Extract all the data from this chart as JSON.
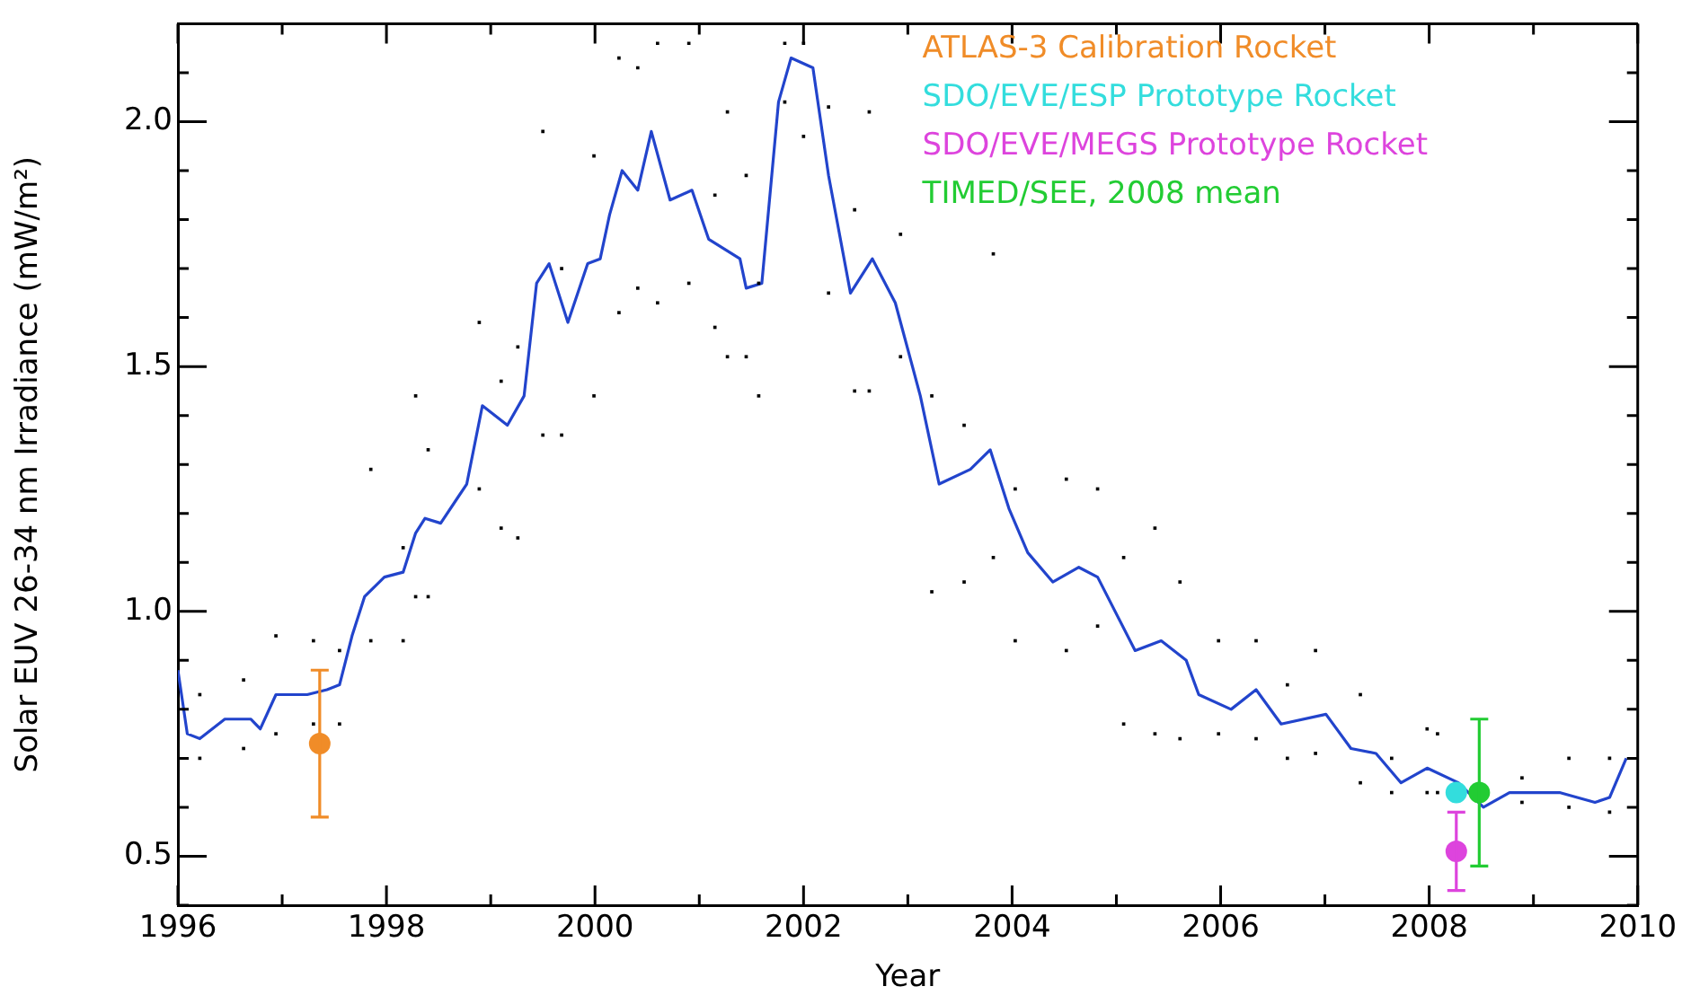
{
  "chart_data": {
    "type": "scatter",
    "xlabel": "Year",
    "ylabel": "Solar EUV 26-34 nm Irradiance (mW/m²)",
    "xlim": [
      1996,
      2010
    ],
    "xticks": [
      1996,
      {
        "value": 1997,
        "label": null
      },
      1998,
      {
        "value": 1999,
        "label": null
      },
      2000,
      {
        "value": 2001,
        "label": null
      },
      2002,
      {
        "value": 2003,
        "label": null
      },
      2004,
      {
        "value": 2005,
        "label": null
      },
      2006,
      {
        "value": 2007,
        "label": null
      },
      2008,
      {
        "value": 2009,
        "label": null
      },
      2010
    ],
    "ylim": [
      0.4,
      2.2
    ],
    "yticks": [
      {
        "value": 0.4,
        "label": null
      },
      "0.5",
      {
        "value": 0.6,
        "label": null
      },
      {
        "value": 0.7,
        "label": null
      },
      {
        "value": 0.8,
        "label": null
      },
      {
        "value": 0.9,
        "label": null
      },
      {
        "value": 1.0,
        "label": "1.0"
      },
      {
        "value": 1.1,
        "label": null
      },
      {
        "value": 1.2,
        "label": null
      },
      {
        "value": 1.3,
        "label": null
      },
      {
        "value": 1.4,
        "label": null
      },
      1.5,
      {
        "value": 1.6,
        "label": null
      },
      {
        "value": 1.7,
        "label": null
      },
      {
        "value": 1.8,
        "label": null
      },
      {
        "value": 1.9,
        "label": null
      },
      {
        "value": 2.0,
        "label": "2.0"
      },
      {
        "value": 2.1,
        "label": null
      },
      {
        "value": 2.2,
        "label": null
      }
    ],
    "grid": false,
    "legend": "top",
    "series": [
      {
        "color": "#000000",
        "marker": "square",
        "x": [
          1996.21,
          1996.21,
          1996.63,
          1996.63,
          1996.94,
          1996.94,
          1997.3,
          1997.3,
          1997.55,
          1997.55,
          1997.85,
          1997.85,
          1998.16,
          1998.16,
          1998.28,
          1998.28,
          1998.4,
          1998.4,
          1998.89,
          1998.89,
          1999.1,
          1999.1,
          1999.26,
          1999.26,
          1999.5,
          1999.5,
          1999.68,
          1999.68,
          1999.99,
          1999.99,
          2000.23,
          2000.23,
          2000.41,
          2000.41,
          2000.6,
          2000.6,
          2000.9,
          2000.9,
          2001.15,
          2001.15,
          2001.27,
          2001.27,
          2001.45,
          2001.45,
          2001.57,
          2001.57,
          2001.82,
          2001.82,
          2002.0,
          2002.0,
          2002.24,
          2002.24,
          2002.49,
          2002.49,
          2002.63,
          2002.63,
          2002.93,
          2002.93,
          2003.23,
          2003.23,
          2003.54,
          2003.54,
          2003.82,
          2003.82,
          2004.03,
          2004.03,
          2004.52,
          2004.52,
          2004.82,
          2004.82,
          2005.07,
          2005.07,
          2005.37,
          2005.37,
          2005.61,
          2005.61,
          2005.98,
          2005.98,
          2006.34,
          2006.34,
          2006.64,
          2006.64,
          2006.91,
          2006.91,
          2007.34,
          2007.34,
          2007.64,
          2007.64,
          2007.98,
          2007.98,
          2008.08,
          2008.08,
          2008.89,
          2008.89,
          2009.34,
          2009.34,
          2009.73,
          2009.73
        ],
        "values": [
          0.83,
          0.7,
          0.86,
          0.72,
          0.95,
          0.75,
          0.94,
          0.77,
          0.92,
          0.77,
          1.29,
          0.94,
          1.13,
          0.94,
          1.44,
          1.03,
          1.33,
          1.03,
          1.59,
          1.25,
          1.47,
          1.17,
          1.54,
          1.15,
          1.98,
          1.36,
          1.7,
          1.36,
          1.93,
          1.44,
          2.13,
          1.61,
          2.11,
          1.66,
          2.16,
          1.63,
          2.16,
          1.67,
          1.85,
          1.58,
          2.02,
          1.52,
          1.89,
          1.52,
          1.67,
          1.44,
          2.16,
          2.04,
          2.16,
          1.97,
          2.03,
          1.65,
          1.82,
          1.45,
          2.02,
          1.45,
          1.77,
          1.52,
          1.44,
          1.04,
          1.38,
          1.06,
          1.73,
          1.11,
          1.25,
          0.94,
          1.27,
          0.92,
          1.25,
          0.97,
          1.11,
          0.77,
          1.17,
          0.75,
          1.06,
          0.74,
          0.94,
          0.75,
          0.94,
          0.74,
          0.85,
          0.7,
          0.92,
          0.71,
          0.83,
          0.65,
          0.7,
          0.63,
          0.76,
          0.63,
          0.75,
          0.63,
          0.66,
          0.61,
          0.7,
          0.6,
          0.7,
          0.59
        ]
      },
      {
        "type": "line",
        "color": "#2244cc",
        "marker": "none",
        "x": [
          1996.0,
          1996.09,
          1996.21,
          1996.45,
          1996.7,
          1996.79,
          1996.94,
          1997.24,
          1997.43,
          1997.55,
          1997.67,
          1997.79,
          1997.98,
          1998.16,
          1998.28,
          1998.37,
          1998.52,
          1998.77,
          1998.92,
          1999.16,
          1999.32,
          1999.44,
          1999.56,
          1999.74,
          1999.93,
          2000.05,
          2000.14,
          2000.26,
          2000.41,
          2000.54,
          2000.72,
          2000.93,
          2001.09,
          2001.39,
          2001.45,
          2001.6,
          2001.76,
          2001.88,
          2002.09,
          2002.24,
          2002.45,
          2002.66,
          2002.88,
          2003.12,
          2003.3,
          2003.6,
          2003.79,
          2003.97,
          2004.15,
          2004.39,
          2004.64,
          2004.82,
          2005.18,
          2005.43,
          2005.67,
          2005.79,
          2006.1,
          2006.34,
          2006.58,
          2007.01,
          2007.25,
          2007.49,
          2007.73,
          2007.98,
          2008.28,
          2008.52,
          2008.77,
          2009.25,
          2009.59,
          2009.73,
          2009.89
        ],
        "values": [
          0.88,
          0.75,
          0.74,
          0.78,
          0.78,
          0.76,
          0.83,
          0.83,
          0.84,
          0.85,
          0.95,
          1.03,
          1.07,
          1.08,
          1.16,
          1.19,
          1.18,
          1.26,
          1.42,
          1.38,
          1.44,
          1.67,
          1.71,
          1.59,
          1.71,
          1.72,
          1.81,
          1.9,
          1.86,
          1.98,
          1.84,
          1.86,
          1.76,
          1.72,
          1.66,
          1.67,
          2.04,
          2.13,
          2.11,
          1.89,
          1.65,
          1.72,
          1.63,
          1.44,
          1.26,
          1.29,
          1.33,
          1.21,
          1.12,
          1.06,
          1.09,
          1.07,
          0.92,
          0.94,
          0.9,
          0.83,
          0.8,
          0.84,
          0.77,
          0.79,
          0.72,
          0.71,
          0.65,
          0.68,
          0.65,
          0.6,
          0.63,
          0.63,
          0.61,
          0.62,
          0.7
        ]
      },
      {
        "type": "scatter",
        "name": "ATLAS-3 Calibration Rocket",
        "color": "#f08c28",
        "marker": "circle",
        "x": [
          1997.36
        ],
        "values": [
          0.73
        ],
        "errors": [
          0.15
        ]
      },
      {
        "type": "scatter",
        "name": "SDO/EVE/ESP Prototype Rocket",
        "color": "#33dddd",
        "marker": "circle",
        "x": [
          2008.26
        ],
        "values": [
          0.63
        ]
      },
      {
        "type": "scatter",
        "name": "SDO/EVE/MEGS Prototype Rocket",
        "color": "#dd44dd",
        "marker": "circle",
        "x": [
          2008.26
        ],
        "values": [
          0.51
        ],
        "errors": [
          0.08
        ]
      },
      {
        "type": "scatter",
        "name": "TIMED/SEE, 2008 mean",
        "color": "#22cc33",
        "marker": "circle",
        "x": [
          2008.48
        ],
        "values": [
          0.63
        ],
        "errors": [
          0.15
        ]
      }
    ]
  }
}
